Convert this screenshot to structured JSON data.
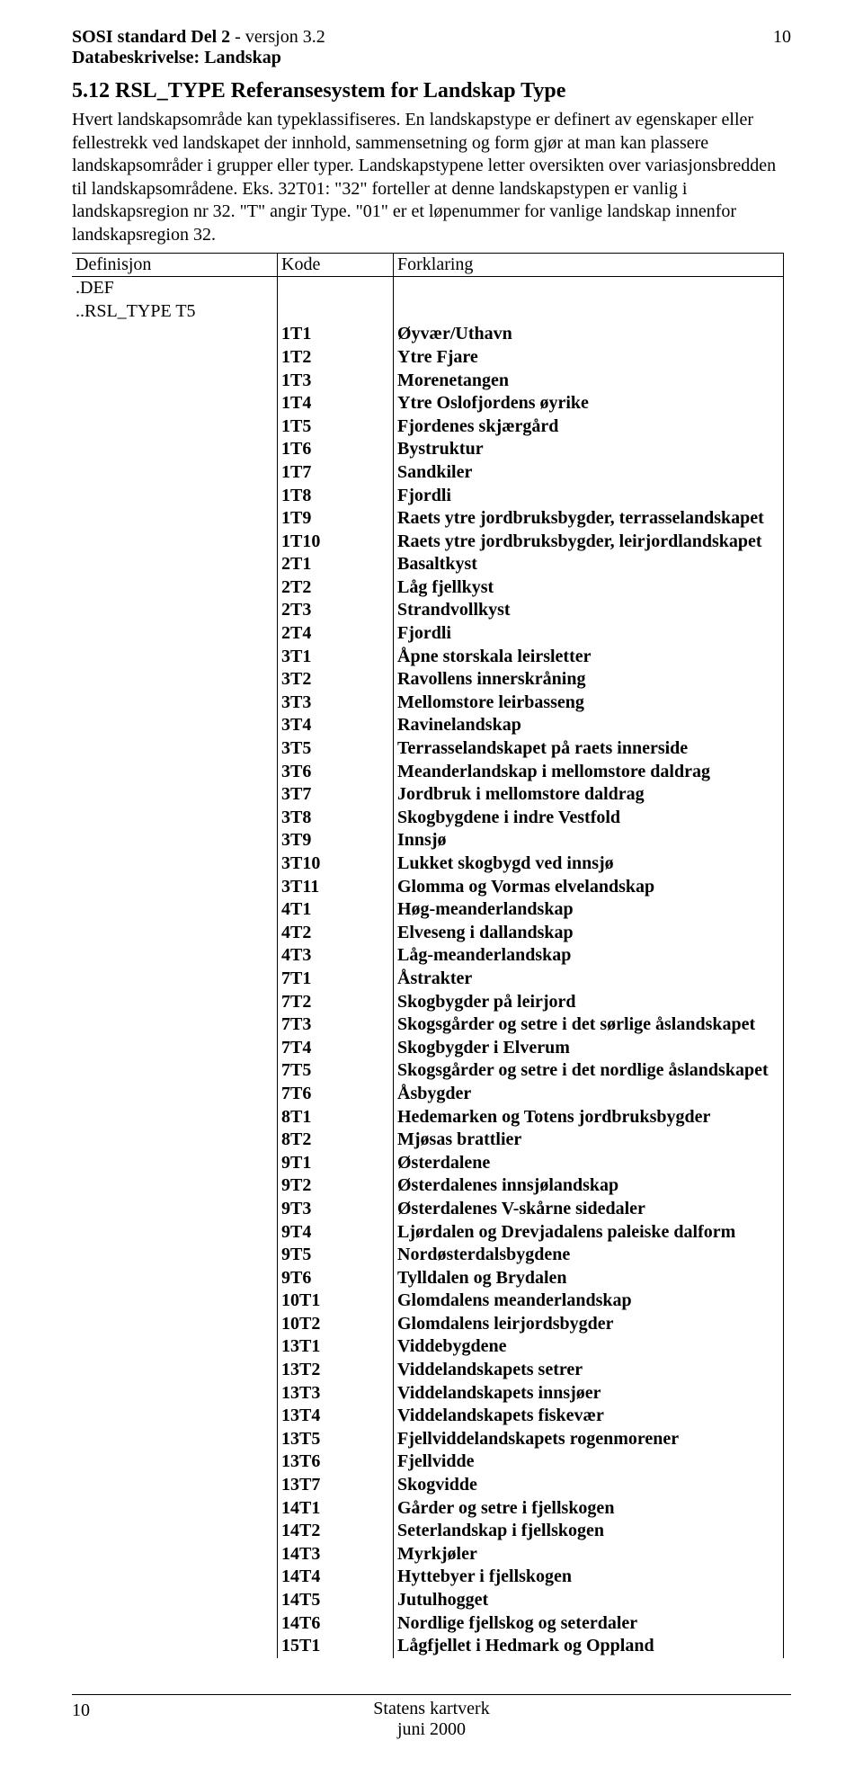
{
  "header": {
    "title_bold": "SOSI standard Del 2",
    "title_rest": " - versjon 3.2",
    "subtitle": "Databeskrivelse: Landskap",
    "page_number_top": "10"
  },
  "section": {
    "number_title": "5.12  RSL_TYPE Referansesystem for Landskap Type",
    "intro": "Hvert landskapsområde kan typeklassifiseres. En landskapstype er definert av egenskaper eller fellestrekk ved landskapet der innhold, sammensetning og form gjør at man kan plassere landskapsområder i grupper eller typer. Landskapstypene letter oversikten over variasjonsbredden til landskapsområdene. Eks. 32T01: \"32\" forteller at denne landskapstypen er vanlig i landskapsregion nr 32. \"T\" angir Type. \"01\" er et løpenummer for vanlige landskap innenfor landskapsregion 32."
  },
  "table": {
    "cols": {
      "a": "Definisjon",
      "b": "Kode",
      "c": "Forklaring"
    },
    "def_row": ".DEF",
    "rsl_row": "..RSL_TYPE T5",
    "rows": [
      {
        "kode": "1T1",
        "fk": "Øyvær/Uthavn"
      },
      {
        "kode": "1T2",
        "fk": "Ytre Fjare"
      },
      {
        "kode": "1T3",
        "fk": "Morenetangen"
      },
      {
        "kode": "1T4",
        "fk": "Ytre Oslofjordens øyrike"
      },
      {
        "kode": "1T5",
        "fk": "Fjordenes skjærgård"
      },
      {
        "kode": "1T6",
        "fk": "Bystruktur"
      },
      {
        "kode": "1T7",
        "fk": "Sandkiler"
      },
      {
        "kode": "1T8",
        "fk": "Fjordli"
      },
      {
        "kode": "1T9",
        "fk": "Raets ytre jordbruksbygder, terrasselandskapet"
      },
      {
        "kode": "1T10",
        "fk": "Raets ytre jordbruksbygder, leirjordlandskapet"
      },
      {
        "kode": "2T1",
        "fk": "Basaltkyst"
      },
      {
        "kode": "2T2",
        "fk": "Låg fjellkyst"
      },
      {
        "kode": "2T3",
        "fk": "Strandvollkyst"
      },
      {
        "kode": "2T4",
        "fk": "Fjordli"
      },
      {
        "kode": "3T1",
        "fk": "Åpne storskala leirsletter"
      },
      {
        "kode": "3T2",
        "fk": "Ravollens innerskråning"
      },
      {
        "kode": "3T3",
        "fk": "Mellomstore leirbasseng"
      },
      {
        "kode": "3T4",
        "fk": "Ravinelandskap"
      },
      {
        "kode": "3T5",
        "fk": "Terrasselandskapet på raets innerside"
      },
      {
        "kode": "3T6",
        "fk": "Meanderlandskap i mellomstore daldrag"
      },
      {
        "kode": "3T7",
        "fk": "Jordbruk i mellomstore daldrag"
      },
      {
        "kode": "3T8",
        "fk": "Skogbygdene i indre Vestfold"
      },
      {
        "kode": "3T9",
        "fk": "Innsjø"
      },
      {
        "kode": "3T10",
        "fk": "Lukket skogbygd ved innsjø"
      },
      {
        "kode": "3T11",
        "fk": "Glomma og Vormas elvelandskap"
      },
      {
        "kode": "4T1",
        "fk": "Høg-meanderlandskap"
      },
      {
        "kode": "4T2",
        "fk": "Elveseng i dallandskap"
      },
      {
        "kode": "4T3",
        "fk": "Låg-meanderlandskap"
      },
      {
        "kode": "7T1",
        "fk": "Åstrakter"
      },
      {
        "kode": "7T2",
        "fk": "Skogbygder på leirjord"
      },
      {
        "kode": "7T3",
        "fk": "Skogsgårder og setre i det sørlige åslandskapet"
      },
      {
        "kode": "7T4",
        "fk": "Skogbygder i Elverum"
      },
      {
        "kode": "7T5",
        "fk": "Skogsgårder og setre i det nordlige åslandskapet"
      },
      {
        "kode": "7T6",
        "fk": "Åsbygder"
      },
      {
        "kode": "8T1",
        "fk": "Hedemarken og Totens jordbruksbygder"
      },
      {
        "kode": "8T2",
        "fk": "Mjøsas brattlier"
      },
      {
        "kode": "9T1",
        "fk": "Østerdalene"
      },
      {
        "kode": "9T2",
        "fk": "Østerdalenes innsjølandskap"
      },
      {
        "kode": "9T3",
        "fk": "Østerdalenes V-skårne sidedaler"
      },
      {
        "kode": "9T4",
        "fk": "Ljørdalen og Drevjadalens paleiske dalform"
      },
      {
        "kode": "9T5",
        "fk": "Nordøsterdalsbygdene"
      },
      {
        "kode": "9T6",
        "fk": "Tylldalen og Brydalen"
      },
      {
        "kode": "10T1",
        "fk": "Glomdalens meanderlandskap"
      },
      {
        "kode": "10T2",
        "fk": "Glomdalens leirjordsbygder"
      },
      {
        "kode": "13T1",
        "fk": "Viddebygdene"
      },
      {
        "kode": "13T2",
        "fk": "Viddelandskapets setrer"
      },
      {
        "kode": "13T3",
        "fk": "Viddelandskapets innsjøer"
      },
      {
        "kode": "13T4",
        "fk": "Viddelandskapets fiskevær"
      },
      {
        "kode": "13T5",
        "fk": "Fjellviddelandskapets rogenmorener"
      },
      {
        "kode": "13T6",
        "fk": "Fjellvidde"
      },
      {
        "kode": "13T7",
        "fk": "Skogvidde"
      },
      {
        "kode": "14T1",
        "fk": "Gårder og setre i fjellskogen"
      },
      {
        "kode": "14T2",
        "fk": "Seterlandskap i fjellskogen"
      },
      {
        "kode": "14T3",
        "fk": "Myrkjøler"
      },
      {
        "kode": "14T4",
        "fk": "Hyttebyer i fjellskogen"
      },
      {
        "kode": "14T5",
        "fk": "Jutulhogget"
      },
      {
        "kode": "14T6",
        "fk": "Nordlige fjellskog og seterdaler"
      },
      {
        "kode": "15T1",
        "fk": "Lågfjellet i Hedmark og Oppland"
      }
    ]
  },
  "footer": {
    "page_number": "10",
    "line1": "Statens kartverk",
    "line2": "juni 2000"
  }
}
